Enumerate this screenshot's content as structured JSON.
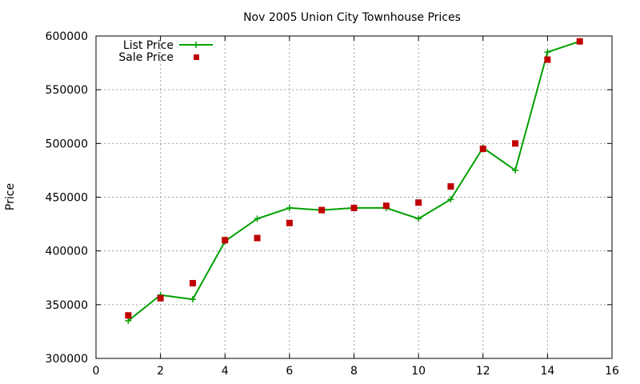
{
  "chart_data": {
    "type": "line",
    "title": "Nov 2005 Union City Townhouse Prices",
    "xlabel": "",
    "ylabel": "Price",
    "xlim": [
      0,
      16
    ],
    "ylim": [
      300000,
      600000
    ],
    "xticks": [
      0,
      2,
      4,
      6,
      8,
      10,
      12,
      14,
      16
    ],
    "yticks": [
      300000,
      350000,
      400000,
      450000,
      500000,
      550000,
      600000
    ],
    "grid": true,
    "legend_position": "top-left",
    "series": [
      {
        "name": "List Price",
        "style": "line-with-plus-markers",
        "color": "#00a000",
        "x": [
          1,
          2,
          3,
          4,
          5,
          6,
          7,
          8,
          9,
          10,
          11,
          12,
          13,
          14,
          15
        ],
        "y": [
          335000,
          359000,
          355000,
          409000,
          430000,
          440000,
          438000,
          440000,
          440000,
          430000,
          448000,
          496000,
          475000,
          585000,
          595000
        ]
      },
      {
        "name": "Sale Price",
        "style": "square-markers",
        "color": "#c00000",
        "x": [
          1,
          2,
          3,
          4,
          5,
          6,
          7,
          8,
          9,
          10,
          11,
          12,
          13,
          14,
          15
        ],
        "y": [
          340000,
          356000,
          370000,
          410000,
          412000,
          426000,
          438000,
          440000,
          442000,
          445000,
          460000,
          495000,
          500000,
          578000,
          595000
        ]
      }
    ]
  }
}
